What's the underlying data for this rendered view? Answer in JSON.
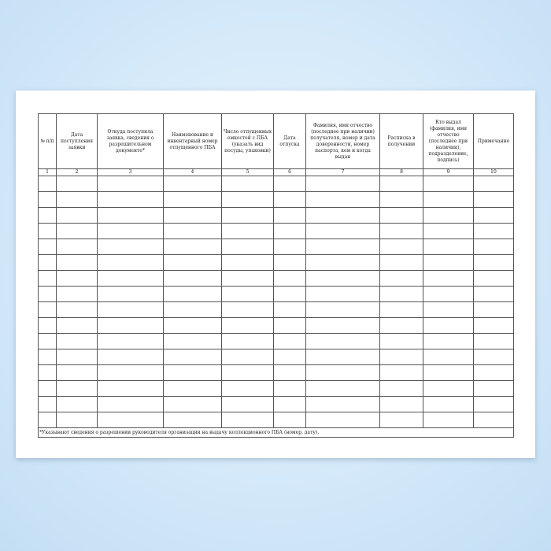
{
  "columns": [
    {
      "header": "№ п/п",
      "num": "1"
    },
    {
      "header": "Дата поступления заявки",
      "num": "2"
    },
    {
      "header": "Откуда поступила заявка, сведения о разрешительном документе*",
      "num": "3"
    },
    {
      "header": "Наименование и инвентарный номер отпущенного ПБА",
      "num": "4"
    },
    {
      "header": "Число отпущенных емкостей с ПБА (указать вид посуды, упаковки)",
      "num": "5"
    },
    {
      "header": "Дата отпуска",
      "num": "6"
    },
    {
      "header": "Фамилия, имя отчество (последнее при наличии) получателя, номер и дата доверенности, номер паспорта, кем и когда выдан",
      "num": "7"
    },
    {
      "header": "Расписка в получении",
      "num": "8"
    },
    {
      "header": "Кто выдал (фамилия, имя отчество (последнее при наличии), подразделение, подпись)",
      "num": "9"
    },
    {
      "header": "Примечание",
      "num": "10"
    }
  ],
  "footnote": "*Указывают сведения о разрешении руководителя организации на выдачу коллекционного ПБА (номер, дату).",
  "empty_rows": 16
}
